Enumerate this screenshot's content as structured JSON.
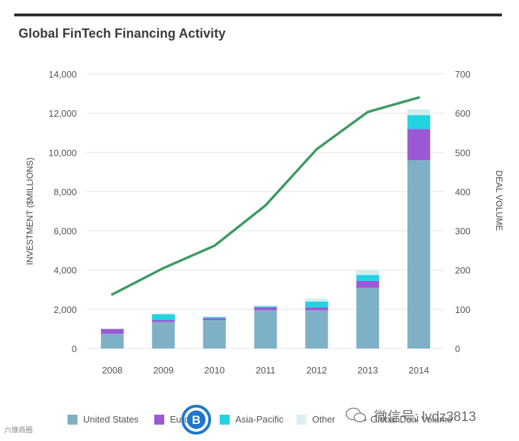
{
  "title": "Global FinTech Financing Activity",
  "chart_data": {
    "type": "bar",
    "stacked": true,
    "title": "Global FinTech Financing Activity",
    "categories": [
      "2008",
      "2009",
      "2010",
      "2011",
      "2012",
      "2013",
      "2014"
    ],
    "series": [
      {
        "name": "United States",
        "color": "#7fb1c6",
        "values": [
          750,
          1350,
          1450,
          1950,
          1950,
          3100,
          9600
        ]
      },
      {
        "name": "Europe",
        "color": "#9b59d6",
        "values": [
          250,
          100,
          100,
          150,
          150,
          350,
          1600
        ]
      },
      {
        "name": "Asia-Pacific",
        "color": "#22d4e2",
        "values": [
          0,
          300,
          50,
          50,
          300,
          300,
          700
        ]
      },
      {
        "name": "Other",
        "color": "#cfeeee",
        "values": [
          0,
          50,
          50,
          50,
          150,
          250,
          300
        ]
      }
    ],
    "line_series": {
      "name": "Global Deal Volume",
      "color": "#3d9a62",
      "axis": "right",
      "values": [
        138,
        205,
        262,
        365,
        508,
        603,
        640
      ]
    },
    "ylabel": "INVESTMENT ($MILLIONS)",
    "ylabel_right": "DEAL VOLUME",
    "ylim": [
      0,
      14000
    ],
    "ylim_right": [
      0,
      700
    ],
    "yticks": [
      "0",
      "2,000",
      "4,000",
      "6,000",
      "8,000",
      "10,000",
      "12,000",
      "14,000"
    ],
    "yticks_right": [
      "0",
      "100",
      "200",
      "300",
      "400",
      "500",
      "600",
      "700"
    ],
    "legend_position": "bottom",
    "grid": true
  },
  "legend": {
    "us": "United States",
    "europe": "Europe",
    "apac": "Asia-Pacific",
    "other": "Other",
    "deal_volume": "Global Deal Volume"
  },
  "watermarks": {
    "left": "六维商圈",
    "right": "微信号: lvdz3813",
    "logo_letter": "B"
  }
}
